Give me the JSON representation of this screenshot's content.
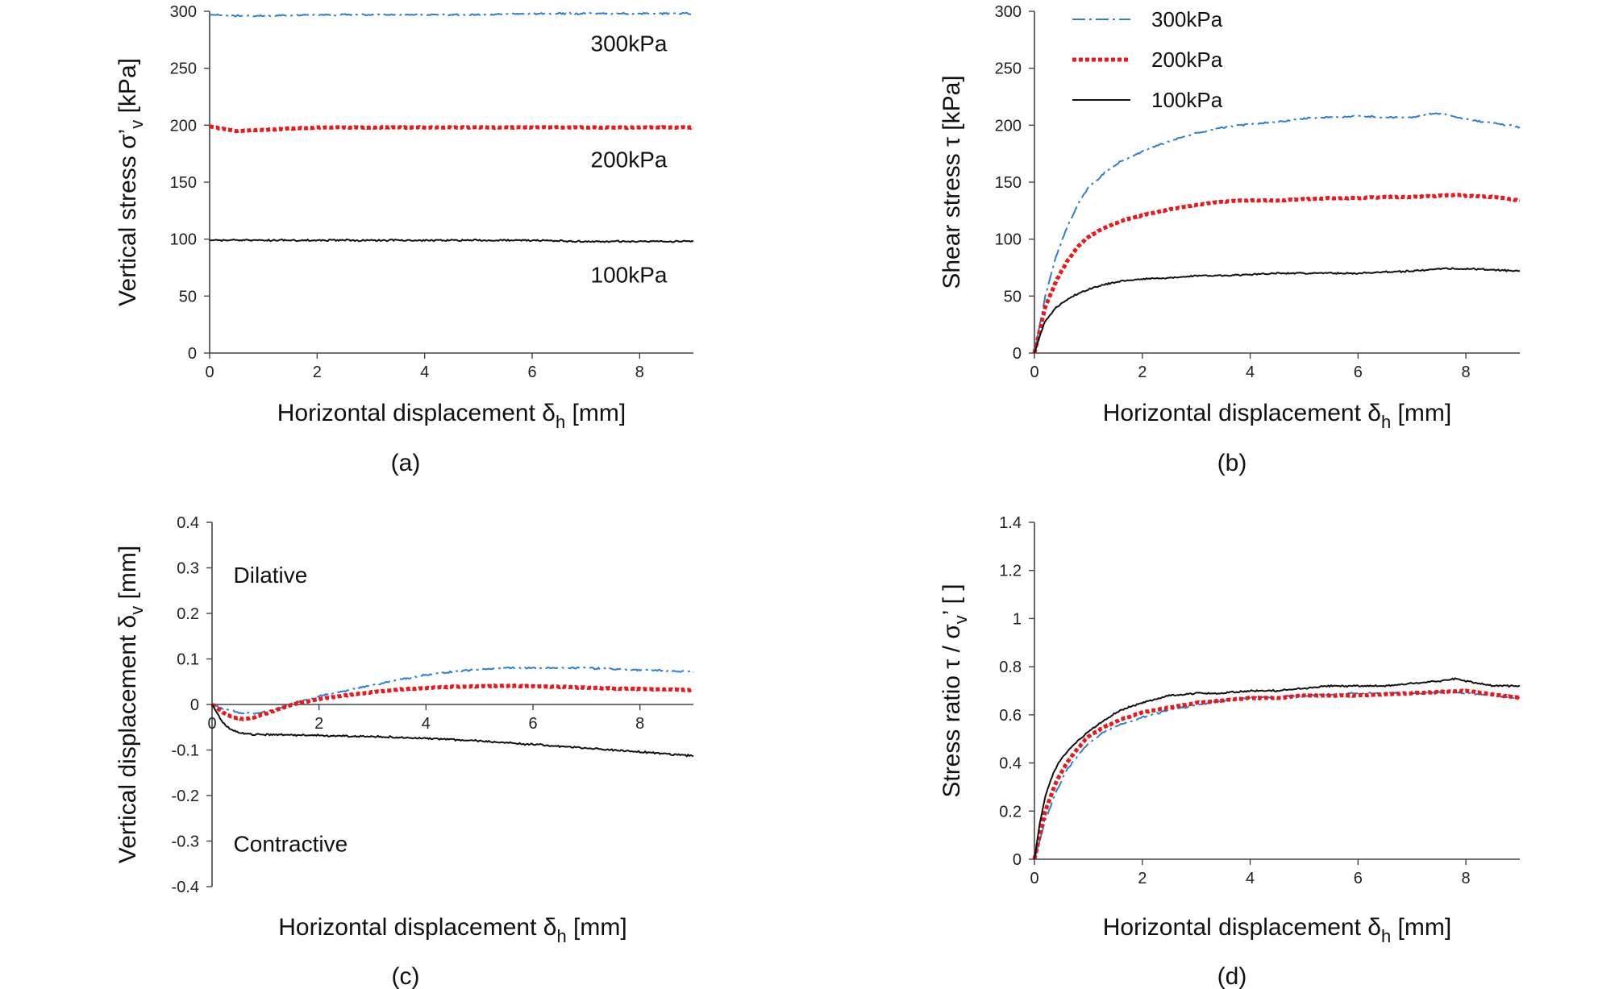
{
  "colors": {
    "s300": "#2f7fd1",
    "s200": "#e8191b",
    "s100": "#111111",
    "axis": "#444444"
  },
  "chart_data": [
    {
      "id": "a",
      "type": "line",
      "panel_label": "(a)",
      "xlabel_main": "Horizontal displacement δ",
      "xlabel_sub": "h",
      "xlabel_tail": " [mm]",
      "ylabel_main": "Vertical stress σ’",
      "ylabel_sub": "v",
      "ylabel_tail": " [kPa]",
      "xlim": [
        0,
        9
      ],
      "ylim": [
        0,
        300
      ],
      "xticks": [
        0,
        2,
        4,
        6,
        8
      ],
      "yticks": [
        0,
        50,
        100,
        150,
        200,
        250,
        300
      ],
      "annotations": [
        {
          "text": "300kPa",
          "x": 7.8,
          "y": 272
        },
        {
          "text": "200kPa",
          "x": 7.8,
          "y": 170
        },
        {
          "text": "100kPa",
          "x": 7.8,
          "y": 69
        }
      ],
      "series": [
        {
          "name": "300kPa",
          "style": "s300",
          "x": [
            0,
            0.5,
            1,
            2,
            3,
            4,
            5,
            6,
            7,
            8,
            9
          ],
          "y": [
            297,
            296,
            296,
            297,
            297,
            297,
            297,
            298,
            298,
            298,
            298
          ]
        },
        {
          "name": "200kPa",
          "style": "s200",
          "x": [
            0,
            0.2,
            0.5,
            1,
            1.5,
            2,
            3,
            4,
            5,
            6,
            7,
            8,
            9
          ],
          "y": [
            199,
            197,
            195,
            196,
            197,
            198,
            198,
            198,
            198,
            198,
            198,
            198,
            198
          ]
        },
        {
          "name": "100kPa",
          "style": "s100",
          "x": [
            0,
            1,
            2,
            3,
            4,
            5,
            6,
            7,
            8,
            9
          ],
          "y": [
            99,
            99,
            99,
            99,
            99,
            99,
            99,
            98,
            98,
            98
          ]
        }
      ]
    },
    {
      "id": "b",
      "type": "line",
      "panel_label": "(b)",
      "xlabel_main": "Horizontal displacement δ",
      "xlabel_sub": "h",
      "xlabel_tail": " [mm]",
      "ylabel_main": "Shear stress τ [kPa]",
      "ylabel_sub": "",
      "ylabel_tail": "",
      "xlim": [
        0,
        9
      ],
      "ylim": [
        0,
        300
      ],
      "xticks": [
        0,
        2,
        4,
        6,
        8
      ],
      "yticks": [
        0,
        50,
        100,
        150,
        200,
        250,
        300
      ],
      "legend": [
        {
          "name": "300kPa",
          "style": "s300"
        },
        {
          "name": "200kPa",
          "style": "s200"
        },
        {
          "name": "100kPa",
          "style": "s100"
        }
      ],
      "series": [
        {
          "name": "300kPa",
          "style": "s300",
          "x": [
            0,
            0.1,
            0.2,
            0.4,
            0.6,
            0.8,
            1.0,
            1.3,
            1.6,
            2.0,
            2.5,
            3.0,
            3.5,
            4.0,
            4.5,
            5.0,
            5.5,
            6.0,
            6.5,
            7.0,
            7.3,
            7.6,
            8.0,
            8.5,
            9.0
          ],
          "y": [
            0,
            25,
            50,
            85,
            110,
            130,
            145,
            158,
            168,
            177,
            186,
            193,
            198,
            201,
            203,
            206,
            207,
            208,
            207,
            207,
            210,
            210,
            205,
            202,
            198
          ]
        },
        {
          "name": "200kPa",
          "style": "s200",
          "x": [
            0,
            0.1,
            0.2,
            0.4,
            0.6,
            0.8,
            1.0,
            1.3,
            1.6,
            2.0,
            2.5,
            3.0,
            3.5,
            4.0,
            4.5,
            5.0,
            5.5,
            6.0,
            6.5,
            7.0,
            7.5,
            7.8,
            8.0,
            8.5,
            9.0
          ],
          "y": [
            0,
            20,
            40,
            63,
            80,
            93,
            102,
            110,
            116,
            121,
            126,
            130,
            133,
            134,
            134,
            135,
            136,
            136,
            137,
            137,
            138,
            139,
            138,
            137,
            134
          ]
        },
        {
          "name": "100kPa",
          "style": "s100",
          "x": [
            0,
            0.1,
            0.2,
            0.4,
            0.6,
            0.8,
            1.0,
            1.3,
            1.6,
            2.0,
            2.5,
            3.0,
            3.5,
            4.0,
            4.5,
            5.0,
            5.5,
            6.0,
            6.5,
            7.0,
            7.5,
            8.0,
            8.5,
            9.0
          ],
          "y": [
            0,
            15,
            28,
            40,
            47,
            52,
            56,
            60,
            63,
            65,
            66,
            68,
            68,
            69,
            70,
            70,
            70,
            70,
            71,
            72,
            74,
            74,
            73,
            72
          ]
        }
      ]
    },
    {
      "id": "c",
      "type": "line",
      "panel_label": "(c)",
      "xlabel_main": "Horizontal displacement δ",
      "xlabel_sub": "h",
      "xlabel_tail": " [mm]",
      "ylabel_main": "Vertical displacement δ",
      "ylabel_sub": "v",
      "ylabel_tail": " [mm]",
      "xlim": [
        0,
        9
      ],
      "ylim": [
        -0.4,
        0.4
      ],
      "xticks": [
        0,
        2,
        4,
        6,
        8
      ],
      "yticks": [
        -0.4,
        -0.3,
        -0.2,
        -0.1,
        0,
        0.1,
        0.2,
        0.3,
        0.4
      ],
      "annotations": [
        {
          "text": "Dilative",
          "x": 0.4,
          "y": 0.285
        },
        {
          "text": "Contractive",
          "x": 0.4,
          "y": -0.305
        }
      ],
      "series": [
        {
          "name": "300kPa",
          "style": "s300",
          "x": [
            0,
            0.2,
            0.5,
            0.8,
            1.2,
            1.6,
            2.0,
            2.5,
            3.0,
            3.5,
            4.0,
            4.5,
            5.0,
            5.5,
            6.0,
            6.5,
            7.0,
            7.5,
            8.0,
            8.5,
            9.0
          ],
          "y": [
            0,
            -0.008,
            -0.018,
            -0.02,
            -0.01,
            0.005,
            0.018,
            0.03,
            0.042,
            0.055,
            0.065,
            0.072,
            0.077,
            0.08,
            0.08,
            0.08,
            0.08,
            0.078,
            0.076,
            0.074,
            0.072
          ]
        },
        {
          "name": "200kPa",
          "style": "s200",
          "x": [
            0,
            0.2,
            0.4,
            0.6,
            0.8,
            1.0,
            1.3,
            1.6,
            2.0,
            2.5,
            3.0,
            3.5,
            4.0,
            4.5,
            5.0,
            5.5,
            6.0,
            6.5,
            7.0,
            7.5,
            8.0,
            8.5,
            9.0
          ],
          "y": [
            0,
            -0.018,
            -0.028,
            -0.032,
            -0.028,
            -0.02,
            -0.008,
            0.003,
            0.012,
            0.02,
            0.027,
            0.033,
            0.036,
            0.039,
            0.04,
            0.041,
            0.04,
            0.039,
            0.037,
            0.035,
            0.034,
            0.033,
            0.032
          ]
        },
        {
          "name": "100kPa",
          "style": "s100",
          "x": [
            0,
            0.1,
            0.2,
            0.35,
            0.5,
            0.7,
            1.0,
            1.5,
            2.0,
            2.5,
            3.0,
            4.0,
            5.0,
            6.0,
            7.0,
            8.0,
            8.5,
            9.0
          ],
          "y": [
            0,
            -0.02,
            -0.04,
            -0.055,
            -0.062,
            -0.065,
            -0.066,
            -0.067,
            -0.068,
            -0.069,
            -0.07,
            -0.074,
            -0.08,
            -0.088,
            -0.096,
            -0.104,
            -0.109,
            -0.113
          ]
        }
      ]
    },
    {
      "id": "d",
      "type": "line",
      "panel_label": "(d)",
      "xlabel_main": "Horizontal displacement δ",
      "xlabel_sub": "h",
      "xlabel_tail": " [mm]",
      "ylabel_main": "Stress ratio τ / σ",
      "ylabel_sub": "v",
      "ylabel_tail": "’ [ ]",
      "xlim": [
        0,
        9
      ],
      "ylim": [
        0,
        1.4
      ],
      "xticks": [
        0,
        2,
        4,
        6,
        8
      ],
      "yticks": [
        0,
        0.2,
        0.4,
        0.6,
        0.8,
        1,
        1.2,
        1.4
      ],
      "series": [
        {
          "name": "300kPa",
          "style": "s300",
          "x": [
            0,
            0.1,
            0.2,
            0.4,
            0.6,
            0.8,
            1.0,
            1.3,
            1.6,
            2.0,
            2.5,
            3.0,
            3.5,
            4.0,
            4.5,
            5.0,
            5.5,
            6.0,
            6.5,
            7.0,
            7.5,
            8.0,
            8.5,
            9.0
          ],
          "y": [
            0,
            0.08,
            0.16,
            0.28,
            0.37,
            0.43,
            0.48,
            0.53,
            0.56,
            0.59,
            0.62,
            0.64,
            0.66,
            0.67,
            0.675,
            0.68,
            0.685,
            0.69,
            0.69,
            0.69,
            0.695,
            0.69,
            0.68,
            0.67
          ]
        },
        {
          "name": "200kPa",
          "style": "s200",
          "x": [
            0,
            0.1,
            0.2,
            0.4,
            0.6,
            0.8,
            1.0,
            1.3,
            1.6,
            2.0,
            2.5,
            3.0,
            3.5,
            4.0,
            4.5,
            5.0,
            5.5,
            6.0,
            6.5,
            7.0,
            7.5,
            8.0,
            8.5,
            9.0
          ],
          "y": [
            0,
            0.1,
            0.2,
            0.32,
            0.4,
            0.46,
            0.51,
            0.55,
            0.58,
            0.61,
            0.63,
            0.65,
            0.66,
            0.67,
            0.67,
            0.68,
            0.68,
            0.68,
            0.685,
            0.69,
            0.695,
            0.7,
            0.685,
            0.67
          ]
        },
        {
          "name": "100kPa",
          "style": "s100",
          "x": [
            0,
            0.1,
            0.2,
            0.35,
            0.5,
            0.7,
            1.0,
            1.3,
            1.6,
            2.0,
            2.5,
            3.0,
            3.5,
            4.0,
            4.5,
            5.0,
            5.5,
            6.0,
            6.5,
            7.0,
            7.5,
            7.8,
            8.0,
            8.5,
            9.0
          ],
          "y": [
            0,
            0.15,
            0.26,
            0.36,
            0.42,
            0.47,
            0.53,
            0.58,
            0.62,
            0.65,
            0.68,
            0.69,
            0.69,
            0.7,
            0.7,
            0.71,
            0.72,
            0.72,
            0.72,
            0.73,
            0.74,
            0.75,
            0.74,
            0.72,
            0.72
          ]
        }
      ]
    }
  ]
}
